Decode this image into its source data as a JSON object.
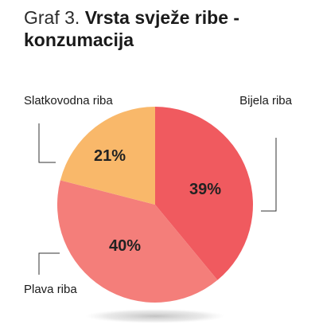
{
  "title": {
    "prefix": "Graf 3.",
    "main": "Vrsta svježe ribe - konzumacija"
  },
  "chart_data": {
    "type": "pie",
    "categories": [
      "Bijela riba",
      "Plava riba",
      "Slatkovodna riba"
    ],
    "values": [
      39,
      40,
      21
    ],
    "value_labels": [
      "39%",
      "40%",
      "21%"
    ],
    "colors": [
      "#f05a5f",
      "#f47e7a",
      "#f9b86a"
    ],
    "unit": "%"
  }
}
